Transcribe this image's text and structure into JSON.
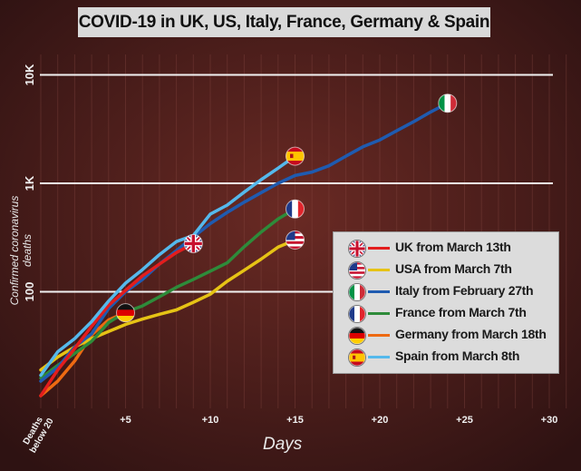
{
  "chart_data": {
    "type": "line",
    "title": "COVID-19 in UK, US, Italy, France, Germany & Spain",
    "xlabel": "Days",
    "ylabel": "Confirmed coronavirus deaths",
    "y_scale": "log",
    "ylim": [
      10,
      20000
    ],
    "xlim": [
      0,
      30
    ],
    "x_ticks": [
      {
        "value": 0,
        "label": "Deaths below 20"
      },
      {
        "value": 5,
        "label": "+5"
      },
      {
        "value": 10,
        "label": "+10"
      },
      {
        "value": 15,
        "label": "+15"
      },
      {
        "value": 20,
        "label": "+20"
      },
      {
        "value": 25,
        "label": "+25"
      },
      {
        "value": 30,
        "label": "+30"
      }
    ],
    "y_ticks": [
      {
        "value": 100,
        "label": "100"
      },
      {
        "value": 1000,
        "label": "1K"
      },
      {
        "value": 10000,
        "label": "10K"
      }
    ],
    "grid": "horizontal",
    "legend_position": "right",
    "series": [
      {
        "name": "UK from March 13th",
        "color": "#e31d1d",
        "flag": "uk",
        "points": [
          [
            0,
            11
          ],
          [
            1,
            19
          ],
          [
            2,
            30
          ],
          [
            3,
            48
          ],
          [
            4,
            75
          ],
          [
            5,
            103
          ],
          [
            6,
            140
          ],
          [
            7,
            180
          ],
          [
            8,
            230
          ],
          [
            9,
            278
          ]
        ]
      },
      {
        "name": "USA from March 7th",
        "color": "#e6c315",
        "flag": "usa",
        "points": [
          [
            0,
            19
          ],
          [
            1,
            25
          ],
          [
            2,
            31
          ],
          [
            3,
            37
          ],
          [
            4,
            43
          ],
          [
            5,
            50
          ],
          [
            6,
            56
          ],
          [
            7,
            62
          ],
          [
            8,
            68
          ],
          [
            9,
            80
          ],
          [
            10,
            95
          ],
          [
            11,
            125
          ],
          [
            12,
            158
          ],
          [
            13,
            200
          ],
          [
            14,
            258
          ],
          [
            15,
            300
          ]
        ]
      },
      {
        "name": "Italy from February 27th",
        "color": "#1f5bb0",
        "flag": "italy",
        "points": [
          [
            0,
            15
          ],
          [
            1,
            20
          ],
          [
            2,
            31
          ],
          [
            3,
            41
          ],
          [
            4,
            70
          ],
          [
            5,
            100
          ],
          [
            6,
            130
          ],
          [
            7,
            180
          ],
          [
            8,
            240
          ],
          [
            9,
            320
          ],
          [
            10,
            425
          ],
          [
            11,
            540
          ],
          [
            12,
            670
          ],
          [
            13,
            820
          ],
          [
            14,
            1000
          ],
          [
            15,
            1180
          ],
          [
            16,
            1270
          ],
          [
            17,
            1450
          ],
          [
            18,
            1780
          ],
          [
            19,
            2170
          ],
          [
            20,
            2510
          ],
          [
            21,
            3050
          ],
          [
            22,
            3700
          ],
          [
            23,
            4550
          ],
          [
            24,
            5480
          ]
        ]
      },
      {
        "name": "France from March 7th",
        "color": "#2e8b3a",
        "flag": "france",
        "points": [
          [
            0,
            16
          ],
          [
            1,
            21
          ],
          [
            2,
            27
          ],
          [
            3,
            35
          ],
          [
            4,
            52
          ],
          [
            5,
            65
          ],
          [
            6,
            74
          ],
          [
            7,
            90
          ],
          [
            8,
            110
          ],
          [
            9,
            130
          ],
          [
            10,
            155
          ],
          [
            11,
            185
          ],
          [
            12,
            260
          ],
          [
            13,
            355
          ],
          [
            14,
            470
          ],
          [
            15,
            580
          ]
        ]
      },
      {
        "name": "Germany from March 18th",
        "color": "#ee6a12",
        "flag": "germany",
        "points": [
          [
            0,
            11
          ],
          [
            1,
            15
          ],
          [
            2,
            23
          ],
          [
            3,
            40
          ],
          [
            4,
            55
          ],
          [
            5,
            64
          ]
        ]
      },
      {
        "name": "Spain from March 8th",
        "color": "#55b9ec",
        "flag": "spain",
        "points": [
          [
            0,
            17
          ],
          [
            1,
            28
          ],
          [
            2,
            37
          ],
          [
            3,
            53
          ],
          [
            4,
            82
          ],
          [
            5,
            120
          ],
          [
            6,
            160
          ],
          [
            7,
            220
          ],
          [
            8,
            290
          ],
          [
            9,
            330
          ],
          [
            10,
            520
          ],
          [
            11,
            630
          ],
          [
            12,
            830
          ],
          [
            13,
            1080
          ],
          [
            14,
            1380
          ],
          [
            15,
            1780
          ]
        ]
      }
    ]
  }
}
